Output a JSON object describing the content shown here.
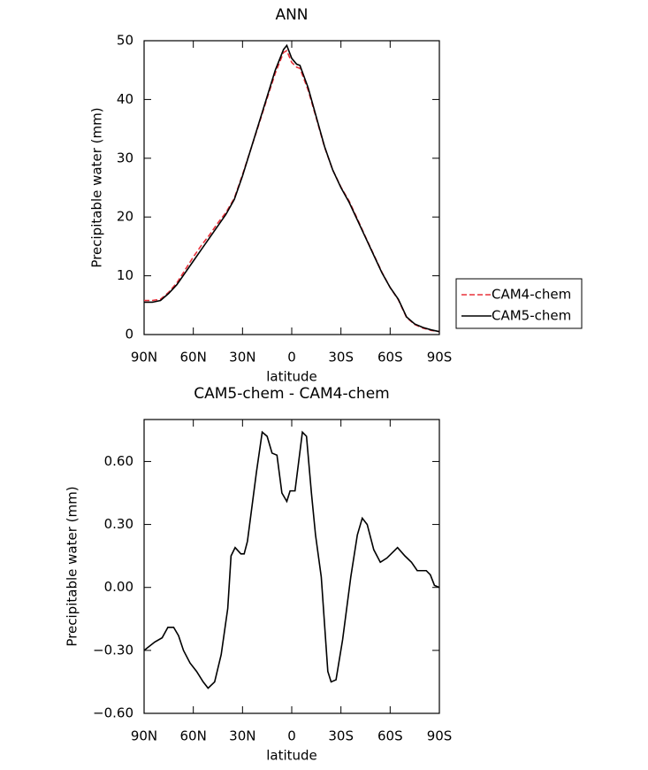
{
  "chart_data": [
    {
      "type": "line",
      "title": "ANN",
      "x_label": "latitude",
      "y_label": "Precipitable water (mm)",
      "x": [
        90,
        85,
        80,
        75,
        70,
        65,
        60,
        55,
        50,
        45,
        40,
        35,
        30,
        25,
        20,
        15,
        10,
        5,
        3,
        0,
        -3,
        -5,
        -10,
        -15,
        -20,
        -25,
        -30,
        -35,
        -40,
        -45,
        -50,
        -55,
        -60,
        -65,
        -70,
        -75,
        -80,
        -85,
        -90
      ],
      "series": [
        {
          "name": "CAM4-chem",
          "color": "#e8303a",
          "line_style": "dashed",
          "values": [
            5.8,
            5.8,
            6.0,
            7.2,
            8.8,
            11.0,
            13.2,
            15.2,
            17.0,
            19.0,
            20.8,
            23.2,
            27.2,
            31.5,
            35.8,
            40.2,
            44.5,
            48.0,
            48.3,
            46.3,
            45.5,
            45.3,
            41.6,
            36.8,
            31.9,
            28.0,
            25.1,
            22.7,
            19.7,
            16.6,
            13.6,
            10.6,
            8.0,
            5.9,
            2.9,
            1.7,
            1.1,
            0.7,
            0.5
          ]
        },
        {
          "name": "CAM5-chem",
          "color": "#000000",
          "line_style": "solid",
          "values": [
            5.5,
            5.5,
            5.8,
            7.0,
            8.5,
            10.5,
            12.5,
            14.5,
            16.5,
            18.5,
            20.5,
            23.0,
            27.0,
            31.5,
            36.0,
            40.5,
            45.0,
            48.5,
            49.2,
            47.0,
            46.0,
            45.8,
            42.0,
            37.0,
            32.0,
            28.0,
            25.0,
            22.5,
            19.5,
            16.5,
            13.5,
            10.5,
            8.0,
            6.0,
            3.0,
            1.8,
            1.2,
            0.8,
            0.5
          ]
        }
      ],
      "xlim": [
        90,
        -90
      ],
      "xticks": [
        {
          "value": 90,
          "label": "90N"
        },
        {
          "value": 60,
          "label": "60N"
        },
        {
          "value": 30,
          "label": "30N"
        },
        0,
        {
          "value": -30,
          "label": "30S"
        },
        {
          "value": -60,
          "label": "60S"
        },
        {
          "value": -90,
          "label": "90S"
        }
      ],
      "ylim": [
        0,
        50
      ],
      "yticks": [
        0,
        10,
        20,
        30,
        40,
        50
      ],
      "legend": "right"
    },
    {
      "type": "line",
      "title": "CAM5-chem - CAM4-chem",
      "x_label": "latitude",
      "y_label": "Precipitable water (mm)",
      "x": [
        90,
        83.5,
        79,
        75.5,
        72,
        69,
        66,
        62,
        58,
        54,
        51,
        47,
        43,
        39,
        37,
        34.5,
        31,
        29,
        27,
        21.5,
        18,
        15,
        12,
        9,
        6,
        3,
        1,
        -2,
        -6.5,
        -9,
        -12,
        -14.5,
        -18,
        -22,
        -24,
        -27,
        -31,
        -36,
        -40,
        -43,
        -46,
        -50,
        -54,
        -58,
        -64.5,
        -69,
        -73,
        -76.5,
        -82,
        -84.5,
        -87,
        -90
      ],
      "series": [
        {
          "color": "#000000",
          "line_style": "solid",
          "values": [
            -0.3,
            -0.26,
            -0.24,
            -0.19,
            -0.19,
            -0.23,
            -0.3,
            -0.36,
            -0.4,
            -0.45,
            -0.48,
            -0.45,
            -0.32,
            -0.1,
            0.15,
            0.19,
            0.16,
            0.16,
            0.22,
            0.55,
            0.74,
            0.72,
            0.64,
            0.63,
            0.45,
            0.41,
            0.46,
            0.46,
            0.74,
            0.72,
            0.45,
            0.25,
            0.05,
            -0.4,
            -0.45,
            -0.44,
            -0.25,
            0.05,
            0.25,
            0.33,
            0.3,
            0.18,
            0.12,
            0.14,
            0.19,
            0.15,
            0.12,
            0.08,
            0.08,
            0.06,
            0.01,
            0.0
          ]
        }
      ],
      "xlim": [
        90,
        -90
      ],
      "xticks": [
        {
          "value": 90,
          "label": "90N"
        },
        {
          "value": 60,
          "label": "60N"
        },
        {
          "value": 30,
          "label": "30N"
        },
        0,
        {
          "value": -30,
          "label": "30S"
        },
        {
          "value": -60,
          "label": "60S"
        },
        {
          "value": -90,
          "label": "90S"
        }
      ],
      "ylim": [
        -0.6,
        0.8
      ],
      "yticks": [
        {
          "value": -0.6,
          "label": "−0.60"
        },
        {
          "value": -0.3,
          "label": "−0.30"
        },
        {
          "value": 0,
          "label": "0.00"
        },
        {
          "value": 0.3,
          "label": "0.30"
        },
        {
          "value": 0.6,
          "label": "0.60"
        }
      ]
    }
  ]
}
